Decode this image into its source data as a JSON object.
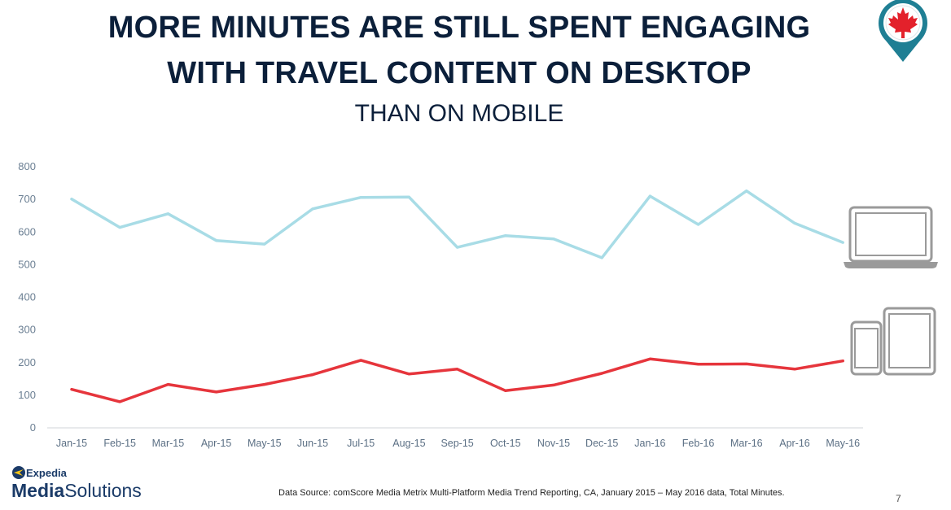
{
  "header": {
    "title_line1": "MORE MINUTES ARE STILL SPENT ENGAGING",
    "title_line2": "WITH TRAVEL CONTENT ON DESKTOP",
    "subtitle": "THAN ON MOBILE"
  },
  "footer": {
    "source": "Data Source: comScore Media Metrix Multi-Platform Media Trend Reporting, CA, January 2015 – May 2016 data, Total Minutes.",
    "page_number": "7",
    "logo_line1": "Expedia",
    "logo_line2_bold": "Media",
    "logo_line2_rest": "Solutions"
  },
  "icons": [
    "canada-map-pin-icon",
    "laptop-icon",
    "phone-icon",
    "tablet-icon"
  ],
  "chart_data": {
    "type": "line",
    "categories": [
      "Jan-15",
      "Feb-15",
      "Mar-15",
      "Apr-15",
      "May-15",
      "Jun-15",
      "Jul-15",
      "Aug-15",
      "Sep-15",
      "Oct-15",
      "Nov-15",
      "Dec-15",
      "Jan-16",
      "Feb-16",
      "Mar-16",
      "Apr-16",
      "May-16"
    ],
    "series": [
      {
        "color": "#a8dce6",
        "values": [
          701,
          614,
          656,
          574,
          563,
          671,
          706,
          707,
          553,
          589,
          579,
          521,
          710,
          623,
          726,
          627,
          568
        ]
      },
      {
        "color": "#e6353c",
        "values": [
          118,
          80,
          133,
          110,
          133,
          163,
          207,
          165,
          180,
          114,
          131,
          167,
          211,
          195,
          196,
          180,
          205
        ]
      }
    ],
    "ylim": [
      0,
      800
    ],
    "yticks": [
      0,
      100,
      200,
      300,
      400,
      500,
      600,
      700,
      800
    ],
    "grid": false,
    "legend": "icons-right"
  }
}
